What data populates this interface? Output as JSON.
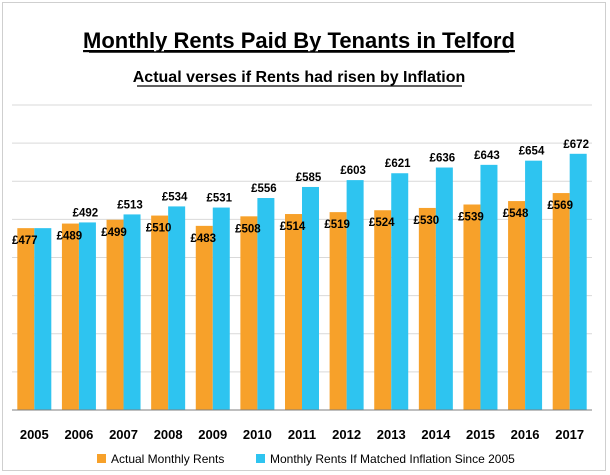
{
  "chart_data": {
    "type": "bar",
    "title": "Monthly Rents Paid By Tenants in Telford",
    "subtitle": "Actual verses if Rents had risen by Inflation",
    "xlabel": "",
    "ylabel": "",
    "categories": [
      "2005",
      "2006",
      "2007",
      "2008",
      "2009",
      "2010",
      "2011",
      "2012",
      "2013",
      "2014",
      "2015",
      "2016",
      "2017"
    ],
    "series": [
      {
        "name": "Actual Monthly Rents",
        "color": "#F7A12A",
        "values": [
          477,
          489,
          499,
          510,
          483,
          508,
          514,
          519,
          524,
          530,
          539,
          548,
          569
        ],
        "labels": [
          "£477",
          "£489",
          "£499",
          "£510",
          "£483",
          "£508",
          "£514",
          "£519",
          "£524",
          "£530",
          "£539",
          "£548",
          "£569"
        ]
      },
      {
        "name": "Monthly Rents If Matched Inflation Since 2005",
        "color": "#2EC4F0",
        "values": [
          477,
          492,
          513,
          534,
          531,
          556,
          585,
          603,
          621,
          636,
          643,
          654,
          672
        ],
        "labels": [
          "",
          "£492",
          "£513",
          "£534",
          "£531",
          "£556",
          "£585",
          "£603",
          "£621",
          "£636",
          "£643",
          "£654",
          "£672"
        ]
      }
    ],
    "ylim": [
      0,
      800
    ],
    "grid": true,
    "legend": "bottom",
    "axis_labels_shown": false
  }
}
